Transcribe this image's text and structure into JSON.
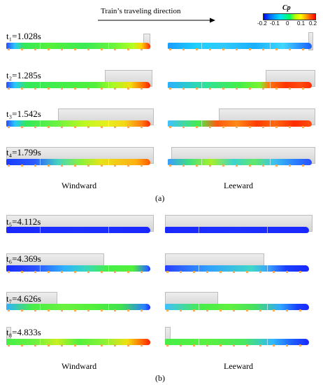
{
  "direction": {
    "label": "Train’s traveling direction"
  },
  "colorbar": {
    "title": "Cp",
    "ticks": [
      "-0.2",
      "-0.1",
      "0",
      "0.1",
      "0.2"
    ],
    "colors": [
      "#0000ff",
      "#00c0ff",
      "#00ff60",
      "#ffff00",
      "#ff0000"
    ]
  },
  "part_a": {
    "rows": [
      {
        "time": "t₁=1.028s"
      },
      {
        "time": "t₂=1.285s"
      },
      {
        "time": "t₃=1.542s"
      },
      {
        "time": "t₄=1.799s"
      }
    ],
    "windward": "Windward",
    "leeward": "Leeward",
    "label": "(a)"
  },
  "part_b": {
    "rows": [
      {
        "time": "t₅=4.112s"
      },
      {
        "time": "t₆=4.369s"
      },
      {
        "time": "t₇=4.626s"
      },
      {
        "time": "t₈=4.833s"
      }
    ],
    "windward": "Windward",
    "leeward": "Leeward",
    "label": "(b)"
  }
}
